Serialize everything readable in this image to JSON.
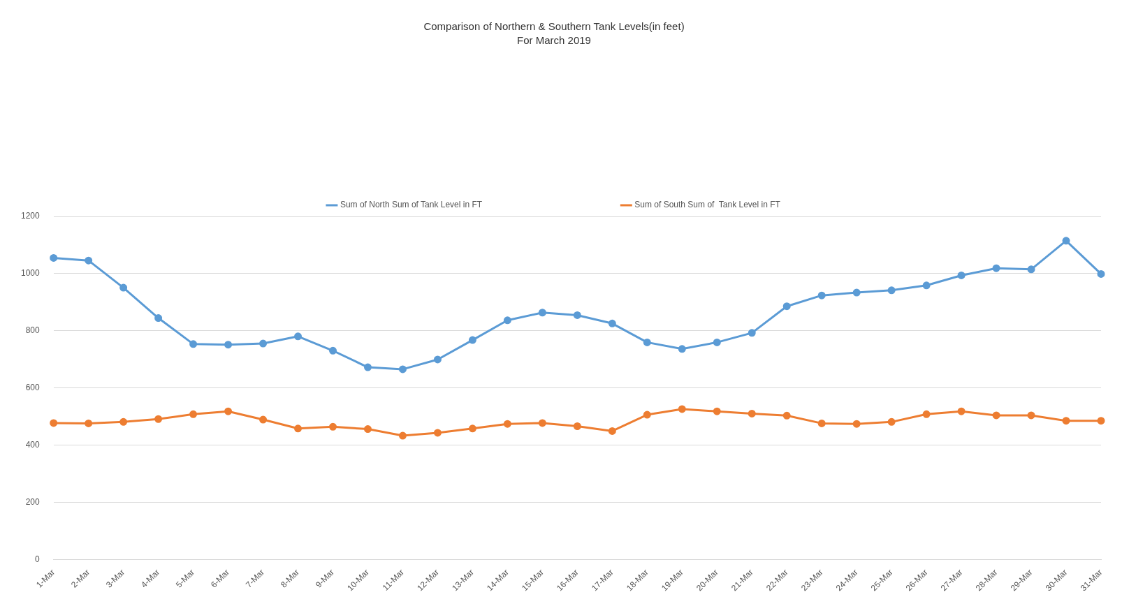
{
  "chart_data": {
    "type": "line",
    "title": "Comparison of Northern & Southern Tank Levels(in feet)",
    "subtitle": "For March 2019",
    "categories": [
      "1-Mar",
      "2-Mar",
      "3-Mar",
      "4-Mar",
      "5-Mar",
      "6-Mar",
      "7-Mar",
      "8-Mar",
      "9-Mar",
      "10-Mar",
      "11-Mar",
      "12-Mar",
      "13-Mar",
      "14-Mar",
      "15-Mar",
      "16-Mar",
      "17-Mar",
      "18-Mar",
      "19-Mar",
      "20-Mar",
      "21-Mar",
      "22-Mar",
      "23-Mar",
      "24-Mar",
      "25-Mar",
      "26-Mar",
      "27-Mar",
      "28-Mar",
      "29-Mar",
      "30-Mar",
      "31-Mar"
    ],
    "series": [
      {
        "name": "Sum of North Sum of Tank Level in FT",
        "color": "#5b9bd5",
        "values": [
          1055,
          1046,
          951,
          845,
          754,
          752,
          756,
          781,
          731,
          673,
          666,
          700,
          768,
          837,
          864,
          855,
          826,
          760,
          737,
          760,
          793,
          886,
          924,
          934,
          942,
          959,
          994,
          1019,
          1015,
          1115,
          999
        ]
      },
      {
        "name": "Sum of South Sum of  Tank Level in FT",
        "color": "#ed7d31",
        "values": [
          478,
          477,
          482,
          492,
          509,
          519,
          490,
          459,
          465,
          457,
          434,
          444,
          459,
          475,
          478,
          467,
          450,
          507,
          527,
          519,
          511,
          504,
          477,
          475,
          482,
          509,
          519,
          505,
          505,
          486,
          486
        ]
      }
    ],
    "ylim": [
      0,
      1200
    ],
    "yticks": [
      0,
      200,
      400,
      600,
      800,
      1000,
      1200
    ],
    "grid": "y",
    "legend": "top",
    "marker": "circle",
    "line_style": "solid"
  }
}
